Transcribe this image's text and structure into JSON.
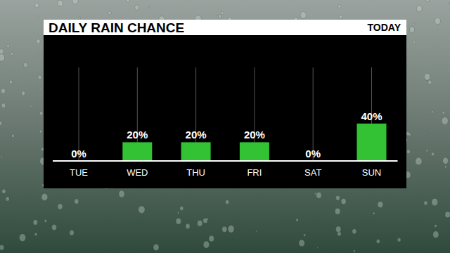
{
  "chart_data": {
    "type": "bar",
    "title": "DAILY RAIN CHANCE",
    "subtitle": "TODAY",
    "categories": [
      "TUE",
      "WED",
      "THU",
      "FRI",
      "SAT",
      "SUN"
    ],
    "values": [
      0,
      20,
      20,
      20,
      0,
      40
    ],
    "value_labels": [
      "0%",
      "20%",
      "20%",
      "20%",
      "0%",
      "40%"
    ],
    "color": "#33c233",
    "ylim": [
      0,
      100
    ],
    "yticks": [],
    "grid": true,
    "data_labels": true,
    "tick_labels": "x"
  }
}
